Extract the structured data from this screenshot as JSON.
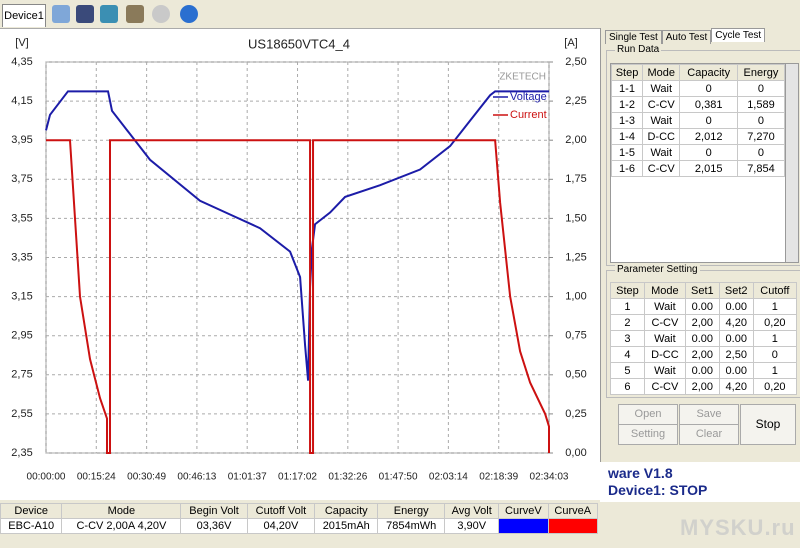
{
  "toolbar": {
    "device_tab": "Device1"
  },
  "chart_data": {
    "type": "line",
    "title": "US18650VTC4_4",
    "ylabel": "[V]",
    "y2label": "[A]",
    "brand": "ZKETECH",
    "xlim": [
      0,
      9243
    ],
    "xticks": [
      {
        "value": 0,
        "label": "00:00:00"
      },
      {
        "value": 924,
        "label": "00:15:24"
      },
      {
        "value": 1849,
        "label": "00:30:49"
      },
      {
        "value": 2773,
        "label": "00:46:13"
      },
      {
        "value": 3697,
        "label": "01:01:37"
      },
      {
        "value": 4622,
        "label": "01:17:02"
      },
      {
        "value": 5546,
        "label": "01:32:26"
      },
      {
        "value": 6470,
        "label": "01:47:50"
      },
      {
        "value": 7394,
        "label": "02:03:14"
      },
      {
        "value": 8319,
        "label": "02:18:39"
      },
      {
        "value": 9243,
        "label": "02:34:03"
      }
    ],
    "ylim": [
      2.35,
      4.35
    ],
    "yticks": [
      {
        "value": 2.35,
        "label": "2,35"
      },
      {
        "value": 2.55,
        "label": "2,55"
      },
      {
        "value": 2.75,
        "label": "2,75"
      },
      {
        "value": 2.95,
        "label": "2,95"
      },
      {
        "value": 3.15,
        "label": "3,15"
      },
      {
        "value": 3.35,
        "label": "3,35"
      },
      {
        "value": 3.55,
        "label": "3,55"
      },
      {
        "value": 3.75,
        "label": "3,75"
      },
      {
        "value": 3.95,
        "label": "3,95"
      },
      {
        "value": 4.15,
        "label": "4,15"
      },
      {
        "value": 4.35,
        "label": "4,35"
      }
    ],
    "y2lim": [
      0,
      2.5
    ],
    "y2ticks": [
      {
        "value": 0,
        "label": "0,00"
      },
      {
        "value": 0.25,
        "label": "0,25"
      },
      {
        "value": 0.5,
        "label": "0,50"
      },
      {
        "value": 0.75,
        "label": "0,75"
      },
      {
        "value": 1,
        "label": "1,00"
      },
      {
        "value": 1.25,
        "label": "1,25"
      },
      {
        "value": 1.5,
        "label": "1,50"
      },
      {
        "value": 1.75,
        "label": "1,75"
      },
      {
        "value": 2,
        "label": "2,00"
      },
      {
        "value": 2.25,
        "label": "2,25"
      },
      {
        "value": 2.5,
        "label": "2,50"
      }
    ],
    "grid": true,
    "series": [
      {
        "name": "Voltage",
        "color": "#1c1ca8",
        "x": [
          0,
          74,
          404,
          1140,
          1213,
          1911,
          2830,
          3382,
          3933,
          4485,
          4669,
          4761,
          4816,
          4852,
          4889,
          4944,
          5220,
          5496,
          6139,
          6874,
          7426,
          7793,
          8161,
          8253,
          9243
        ],
        "values": [
          4.0,
          4.08,
          4.2,
          4.2,
          4.1,
          3.85,
          3.64,
          3.57,
          3.5,
          3.38,
          3.25,
          2.9,
          2.72,
          3.2,
          3.4,
          3.52,
          3.58,
          3.66,
          3.72,
          3.8,
          3.92,
          4.05,
          4.18,
          4.2,
          4.2
        ]
      },
      {
        "name": "Current",
        "color": "#cc1111",
        "axis": "y2",
        "x": [
          0,
          441,
          533,
          625,
          809,
          993,
          1121,
          1121,
          1176,
          1176,
          4852,
          4852,
          4907,
          4907,
          8253,
          8345,
          8529,
          8712,
          8896,
          9172,
          9243,
          9243
        ],
        "values": [
          2.0,
          2.0,
          1.5,
          1.0,
          0.6,
          0.35,
          0.22,
          0,
          0,
          2.0,
          2.0,
          0,
          0,
          2.0,
          2.0,
          1.6,
          1.0,
          0.65,
          0.45,
          0.25,
          0.17,
          0
        ]
      }
    ]
  },
  "tabs": [
    "Single Test",
    "Auto Test",
    "Cycle Test"
  ],
  "run_data": {
    "title": "Run Data",
    "columns": [
      "Step",
      "Mode",
      "Capacity",
      "Energy"
    ],
    "rows": [
      [
        "1-1",
        "Wait",
        "0",
        "0"
      ],
      [
        "1-2",
        "C-CV",
        "0,381",
        "1,589"
      ],
      [
        "1-3",
        "Wait",
        "0",
        "0"
      ],
      [
        "1-4",
        "D-CC",
        "2,012",
        "7,270"
      ],
      [
        "1-5",
        "Wait",
        "0",
        "0"
      ],
      [
        "1-6",
        "C-CV",
        "2,015",
        "7,854"
      ]
    ]
  },
  "parameter_setting": {
    "title": "Parameter Setting",
    "columns": [
      "Step",
      "Mode",
      "Set1",
      "Set2",
      "Cutoff"
    ],
    "rows": [
      [
        "1",
        "Wait",
        "0.00",
        "0.00",
        "1"
      ],
      [
        "2",
        "C-CV",
        "2,00",
        "4,20",
        "0,20"
      ],
      [
        "3",
        "Wait",
        "0.00",
        "0.00",
        "1"
      ],
      [
        "4",
        "D-CC",
        "2,00",
        "2,50",
        "0"
      ],
      [
        "5",
        "Wait",
        "0.00",
        "0.00",
        "1"
      ],
      [
        "6",
        "C-CV",
        "2,00",
        "4,20",
        "0,20"
      ]
    ]
  },
  "buttons": [
    "Open",
    "Save",
    "Setting",
    "Clear",
    "Stop"
  ],
  "status": {
    "version": "ware V1.8",
    "state": "Device1: STOP"
  },
  "summary_table": {
    "columns": [
      "Device",
      "Mode",
      "Begin Volt",
      "Cutoff Volt",
      "Capacity",
      "Energy",
      "Avg Volt",
      "CurveV",
      "CurveA"
    ],
    "row": [
      "EBC-A10",
      "C-CV  2,00A  4,20V",
      "03,36V",
      "04,20V",
      "2015mAh",
      "7854mWh",
      "3,90V"
    ],
    "curve_colors": [
      "#0000ff",
      "#ff0000"
    ]
  },
  "watermark": "MYSKU.ru"
}
